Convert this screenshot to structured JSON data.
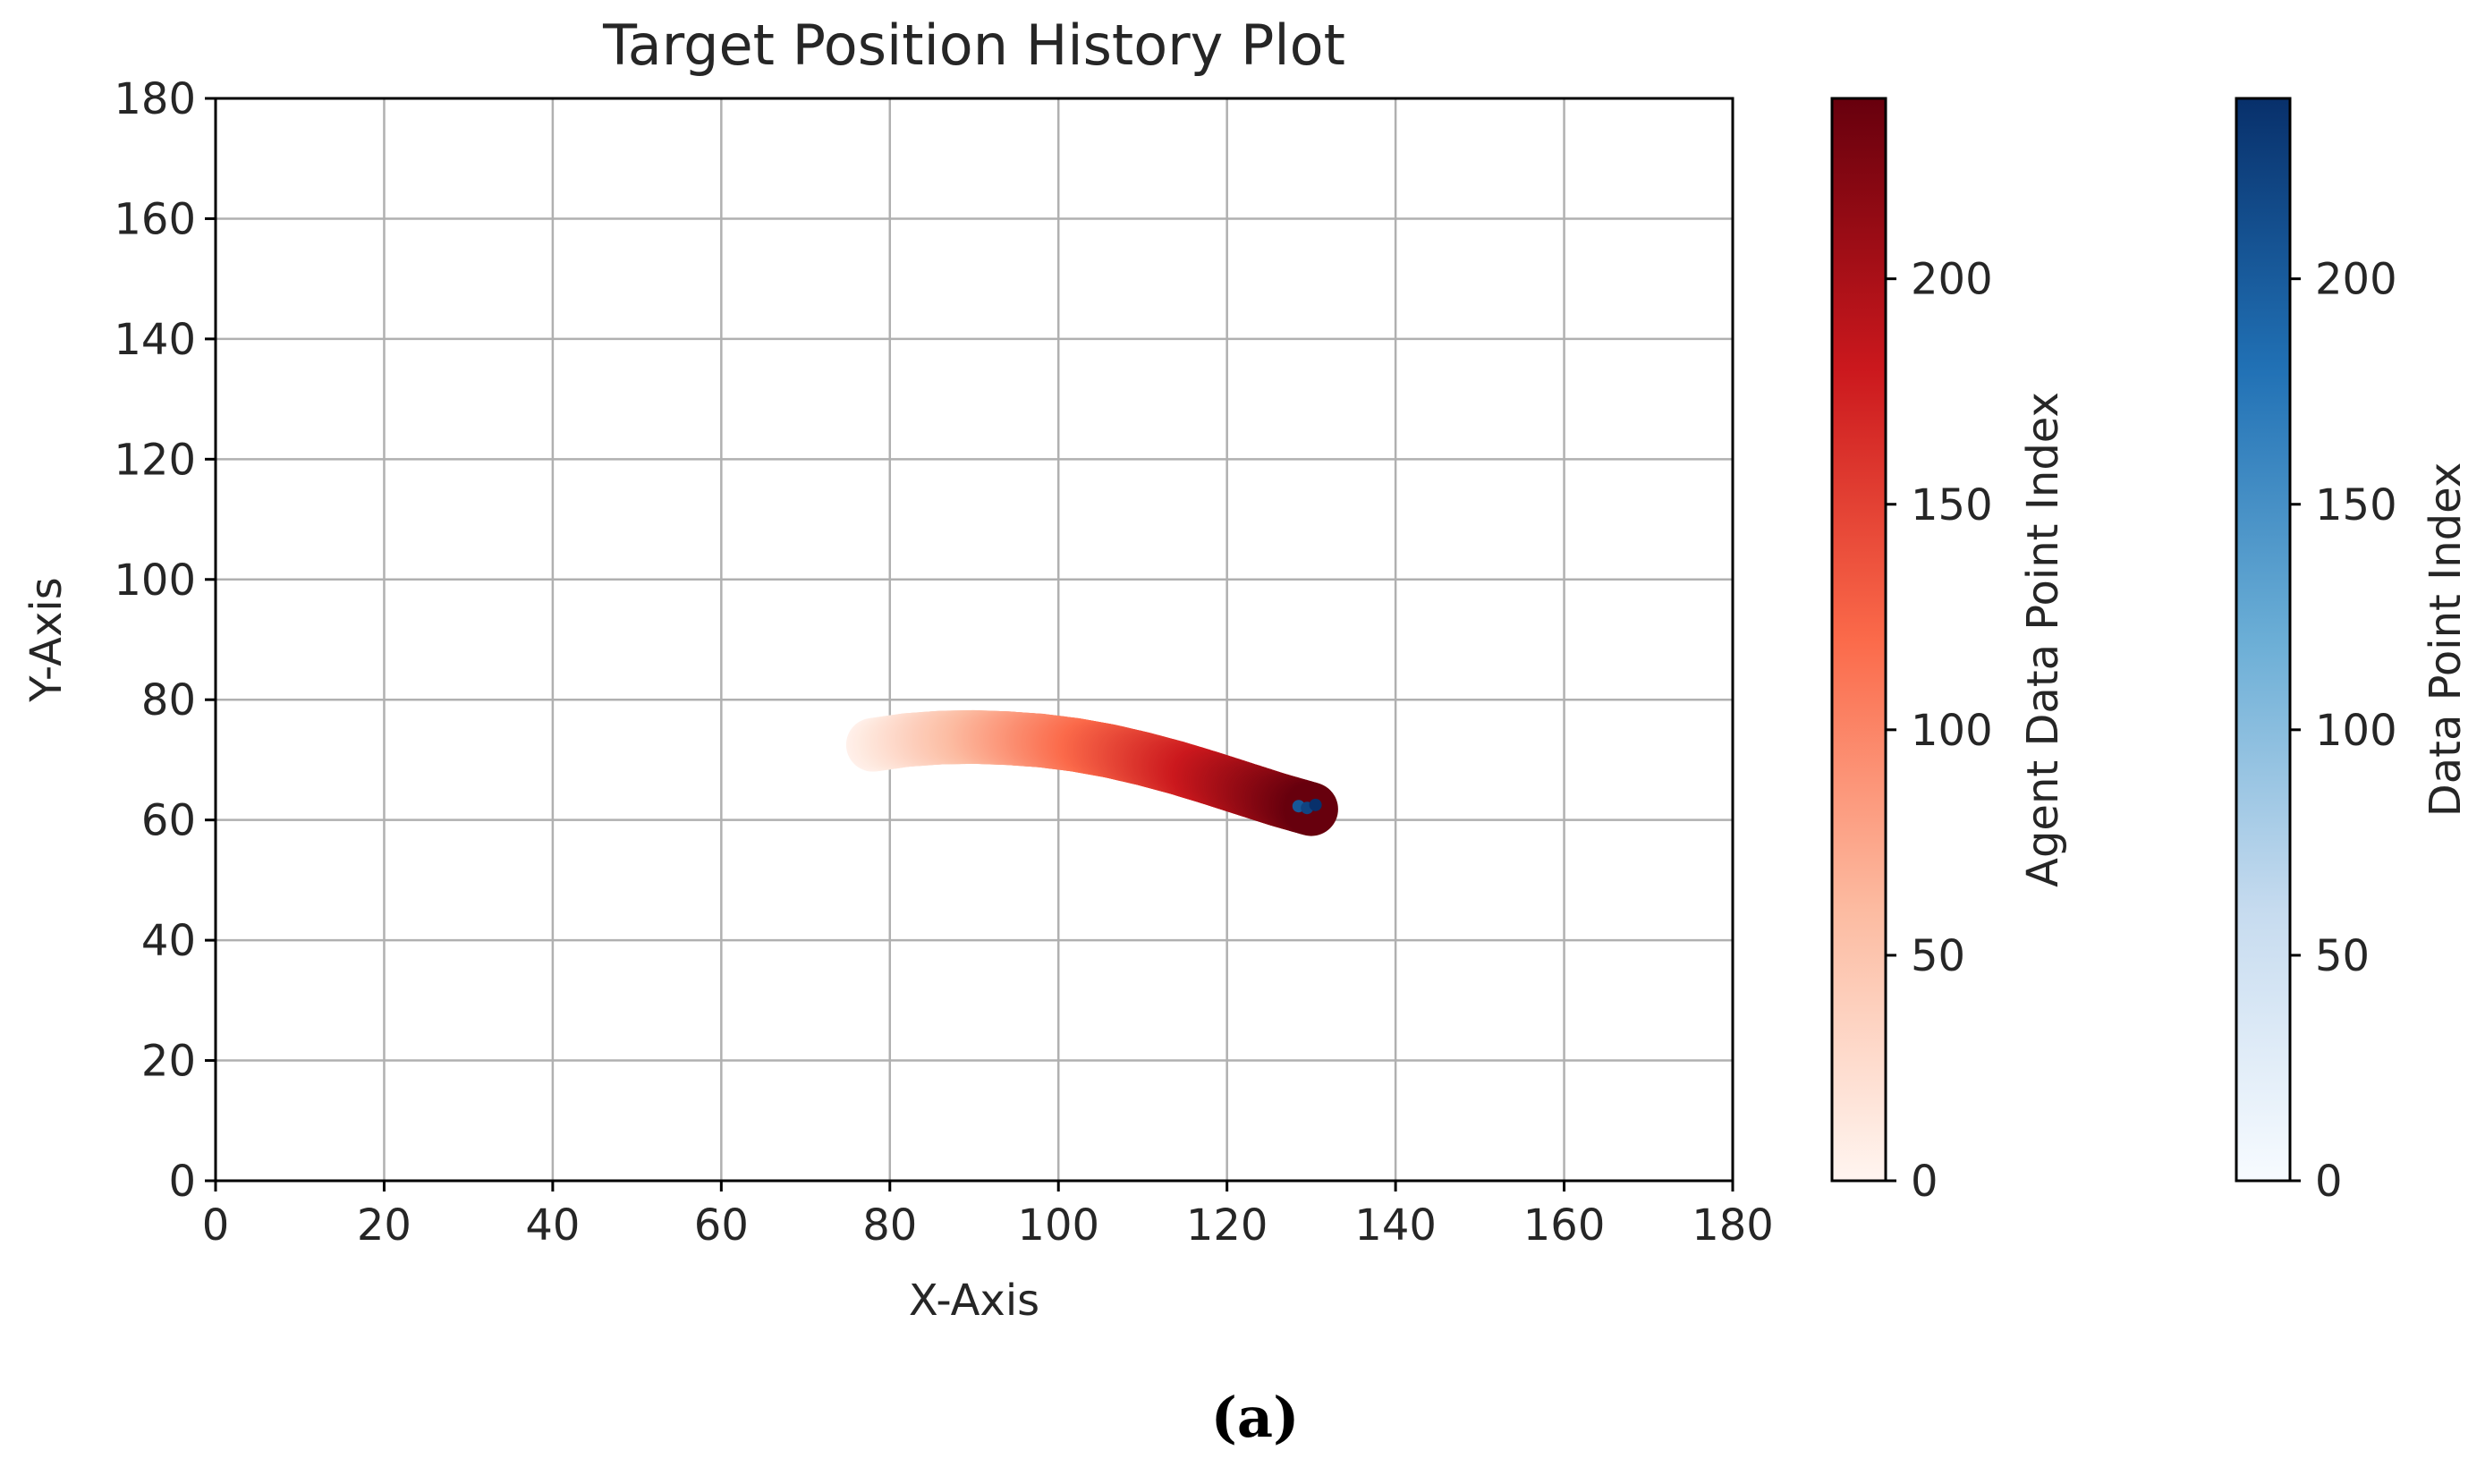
{
  "chart_data": {
    "type": "scatter",
    "title": "Target Position History Plot",
    "xlabel": "X-Axis",
    "ylabel": "Y-Axis",
    "xlim": [
      0,
      180
    ],
    "ylim": [
      0,
      180
    ],
    "xticks": [
      "0",
      "20",
      "40",
      "60",
      "80",
      "100",
      "120",
      "140",
      "160",
      "180"
    ],
    "yticks": [
      "0",
      "20",
      "40",
      "60",
      "80",
      "100",
      "120",
      "140",
      "160",
      "180"
    ],
    "grid": true,
    "series": [
      {
        "name": "Agent Data Point Index",
        "colormap": "Reds",
        "index_range": [
          0,
          240
        ],
        "x": [
          78,
          82,
          86,
          90,
          94,
          98,
          102,
          106,
          110,
          114,
          118,
          122,
          126,
          130
        ],
        "y": [
          72.5,
          73.3,
          73.7,
          73.8,
          73.6,
          73.2,
          72.5,
          71.5,
          70.2,
          68.7,
          67.0,
          65.2,
          63.4,
          61.8
        ]
      },
      {
        "name": "Data Point Index",
        "colormap": "Blues",
        "index_range": [
          0,
          240
        ],
        "x": [
          128.5,
          129.5,
          130.5
        ],
        "y": [
          62.3,
          62.0,
          62.5
        ]
      }
    ],
    "colorbars": [
      {
        "label": "Agent Data Point Index",
        "range": [
          0,
          240
        ],
        "ticks": [
          "0",
          "50",
          "100",
          "150",
          "200"
        ],
        "colors": [
          "#fff5f0",
          "#fcbba1",
          "#fb6a4a",
          "#cb181d",
          "#67000d"
        ]
      },
      {
        "label": "Data Point Index",
        "range": [
          0,
          240
        ],
        "ticks": [
          "0",
          "50",
          "100",
          "150",
          "200"
        ],
        "colors": [
          "#f7fbff",
          "#c6dbef",
          "#6baed6",
          "#2171b5",
          "#08306b"
        ]
      }
    ]
  },
  "caption": "(a)"
}
